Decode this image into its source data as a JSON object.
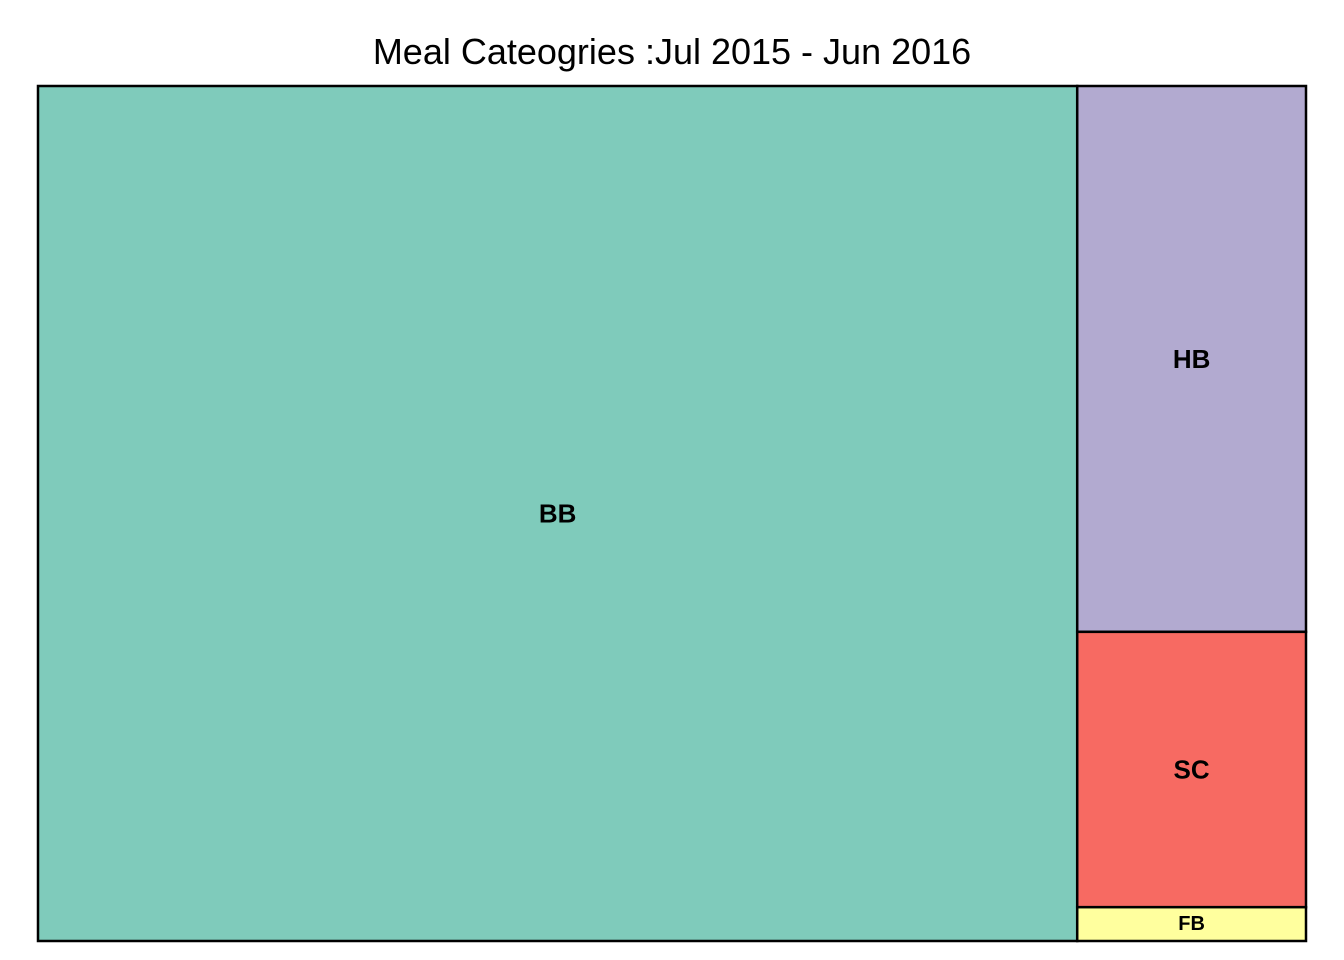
{
  "chart_data": {
    "type": "treemap",
    "title": "Meal Cateogries :Jul 2015 - Jun 2016",
    "items": [
      {
        "label": "BB",
        "value": 80.4,
        "color": "#7fcbbb"
      },
      {
        "label": "HB",
        "value": 11.3,
        "color": "#b2aad0"
      },
      {
        "label": "SC",
        "value": 5.7,
        "color": "#f76a62"
      },
      {
        "label": "FB",
        "value": 0.7,
        "color": "#ffff9e"
      }
    ]
  }
}
